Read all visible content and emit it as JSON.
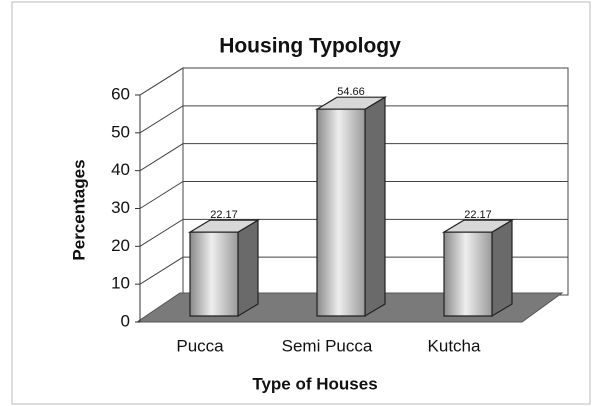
{
  "chart_data": {
    "type": "bar",
    "title": "Housing Typology",
    "categories": [
      "Pucca",
      "Semi Pucca",
      "Kutcha"
    ],
    "values": [
      22.17,
      54.66,
      22.17
    ],
    "color": "#b8b8b8",
    "ylim": [
      0,
      60
    ],
    "yticks": [
      0,
      10,
      20,
      30,
      40,
      50,
      60
    ],
    "grid": true,
    "ylabel": "Percentages",
    "xlabel": "Type of Houses"
  }
}
